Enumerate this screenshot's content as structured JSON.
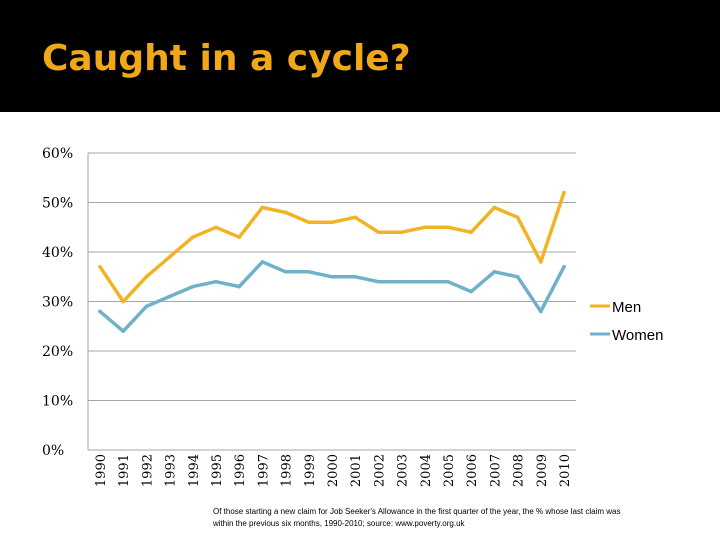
{
  "slide": {
    "title": "Caught in a cycle?",
    "footnote": "Of those starting a new claim for Job Seeker's Allowance in the first quarter of the year, the % whose last claim was within the previous six months, 1990-2010; source: www.poverty.org.uk"
  },
  "colors": {
    "title_bar": "#000000",
    "title_text": "#f0a818",
    "men": "#f0b323",
    "women": "#6fb1c8",
    "grid": "#a6a6a6"
  },
  "chart_data": {
    "type": "line",
    "title": "",
    "xlabel": "",
    "ylabel": "",
    "x": [
      "1990",
      "1991",
      "1992",
      "1993",
      "1994",
      "1995",
      "1996",
      "1997",
      "1998",
      "1999",
      "2000",
      "2001",
      "2002",
      "2003",
      "2004",
      "2005",
      "2006",
      "2007",
      "2008",
      "2009",
      "2010"
    ],
    "series": [
      {
        "name": "Men",
        "color": "#f0b323",
        "values": [
          37,
          30,
          35,
          39,
          43,
          45,
          43,
          49,
          48,
          46,
          46,
          47,
          44,
          44,
          45,
          45,
          44,
          49,
          47,
          38,
          52
        ]
      },
      {
        "name": "Women",
        "color": "#6fb1c8",
        "values": [
          28,
          24,
          29,
          31,
          33,
          34,
          33,
          38,
          36,
          36,
          35,
          35,
          34,
          34,
          34,
          34,
          32,
          36,
          35,
          28,
          37
        ]
      }
    ],
    "ylim": [
      0,
      60
    ],
    "yticks": [
      0,
      10,
      20,
      30,
      40,
      50,
      60
    ],
    "ytick_labels": [
      "0%",
      "10%",
      "20%",
      "30%",
      "40%",
      "50%",
      "60%"
    ],
    "grid": "horizontal",
    "legend_position": "right"
  }
}
